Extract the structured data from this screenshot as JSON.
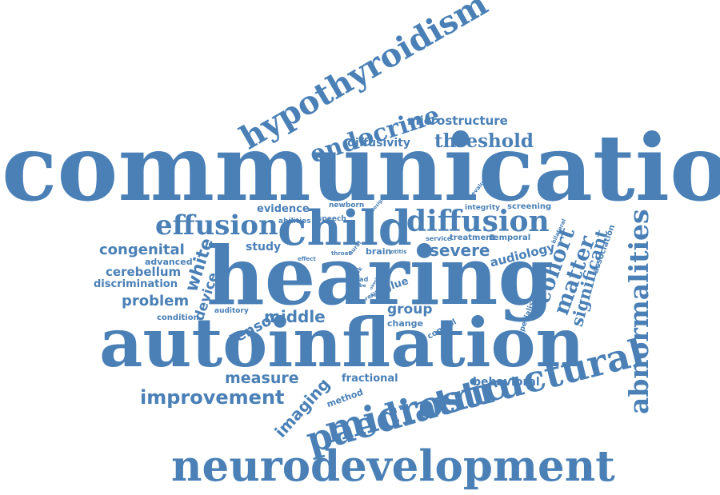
{
  "colors": {
    "word": "#4a80b6",
    "background": "#ffffff"
  },
  "words": [
    {
      "key": "communication",
      "text": "communication"
    },
    {
      "key": "hearing",
      "text": "hearing"
    },
    {
      "key": "autoinflation",
      "text": "autoinflation"
    },
    {
      "key": "neurodevelopment",
      "text": "neurodevelopment"
    },
    {
      "key": "microstructural",
      "text": "microstructural"
    },
    {
      "key": "hypothyroidism",
      "text": "hypothyroidism"
    },
    {
      "key": "abnormalities",
      "text": "abnormalities"
    },
    {
      "key": "paediatric",
      "text": "paediatric"
    },
    {
      "key": "child",
      "text": "child"
    },
    {
      "key": "diffusion",
      "text": "diffusion"
    },
    {
      "key": "effusion",
      "text": "effusion"
    },
    {
      "key": "endocrine",
      "text": "endocrine"
    },
    {
      "key": "threshold",
      "text": "threshold"
    },
    {
      "key": "microstructure",
      "text": "microstructure"
    },
    {
      "key": "diffusivity",
      "text": "diffusivity"
    },
    {
      "key": "cohort",
      "text": "cohort"
    },
    {
      "key": "matter",
      "text": "matter"
    },
    {
      "key": "significant",
      "text": "significant"
    },
    {
      "key": "severe",
      "text": "severe"
    },
    {
      "key": "audiology",
      "text": "audiology"
    },
    {
      "key": "improvement",
      "text": "improvement"
    },
    {
      "key": "measure",
      "text": "measure"
    },
    {
      "key": "imaging",
      "text": "imaging"
    },
    {
      "key": "congenital",
      "text": "congenital"
    },
    {
      "key": "cerebellum",
      "text": "cerebellum"
    },
    {
      "key": "discrimination",
      "text": "discrimination"
    },
    {
      "key": "problem",
      "text": "problem"
    },
    {
      "key": "middle",
      "text": "middle"
    },
    {
      "key": "tensor",
      "text": "tensor"
    },
    {
      "key": "white",
      "text": "white"
    },
    {
      "key": "device",
      "text": "device"
    },
    {
      "key": "study",
      "text": "study"
    },
    {
      "key": "evidence",
      "text": "evidence"
    },
    {
      "key": "abilities",
      "text": "abilities"
    },
    {
      "key": "speech",
      "text": "speech"
    },
    {
      "key": "newborn",
      "text": "newborn"
    },
    {
      "key": "design",
      "text": "design"
    },
    {
      "key": "evaluate",
      "text": "evaluate"
    },
    {
      "key": "integrity",
      "text": "integrity"
    },
    {
      "key": "screening",
      "text": "screening"
    },
    {
      "key": "bilateral",
      "text": "bilateral"
    },
    {
      "key": "association",
      "text": "association"
    },
    {
      "key": "service",
      "text": "service"
    },
    {
      "key": "treatment",
      "text": "treatment"
    },
    {
      "key": "temporal",
      "text": "temporal"
    },
    {
      "key": "throat",
      "text": "throat"
    },
    {
      "key": "brain",
      "text": "brain"
    },
    {
      "key": "otitis",
      "text": "otitis"
    },
    {
      "key": "glue",
      "text": "glue"
    },
    {
      "key": "aural",
      "text": "aural"
    },
    {
      "key": "risk",
      "text": "risk"
    },
    {
      "key": "effect",
      "text": "effect"
    },
    {
      "key": "lead",
      "text": "lead"
    },
    {
      "key": "lobe",
      "text": "lobe"
    },
    {
      "key": "result",
      "text": "result"
    },
    {
      "key": "year",
      "text": "year"
    },
    {
      "key": "obesity",
      "text": "obesity"
    },
    {
      "key": "group",
      "text": "group"
    },
    {
      "key": "change",
      "text": "change"
    },
    {
      "key": "control",
      "text": "control"
    },
    {
      "key": "specialist",
      "text": "specialist"
    },
    {
      "key": "media",
      "text": "media"
    },
    {
      "key": "auditory",
      "text": "auditory"
    },
    {
      "key": "condition",
      "text": "condition"
    },
    {
      "key": "advanced",
      "text": "advanced"
    },
    {
      "key": "fractional",
      "text": "fractional"
    },
    {
      "key": "method",
      "text": "method"
    },
    {
      "key": "behavioral",
      "text": "behavioral"
    }
  ]
}
